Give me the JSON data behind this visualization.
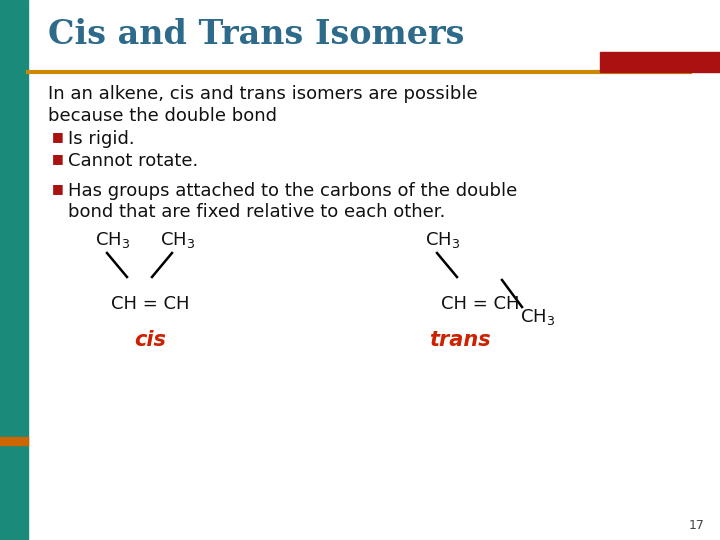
{
  "title": "Cis and Trans Isomers",
  "title_color": "#2E6B8A",
  "title_fontsize": 24,
  "bg_color": "#FFFFFF",
  "left_bar_color": "#1A8A7A",
  "top_line_color": "#CC8800",
  "top_rect_color": "#AA1111",
  "body_text_color": "#111111",
  "bullet_color": "#AA1111",
  "bullet_char": "■",
  "cis_label": "cis",
  "trans_label": "trans",
  "label_color": "#CC2200",
  "page_num": "17",
  "text_fontsize": 13,
  "chem_fontsize": 13
}
